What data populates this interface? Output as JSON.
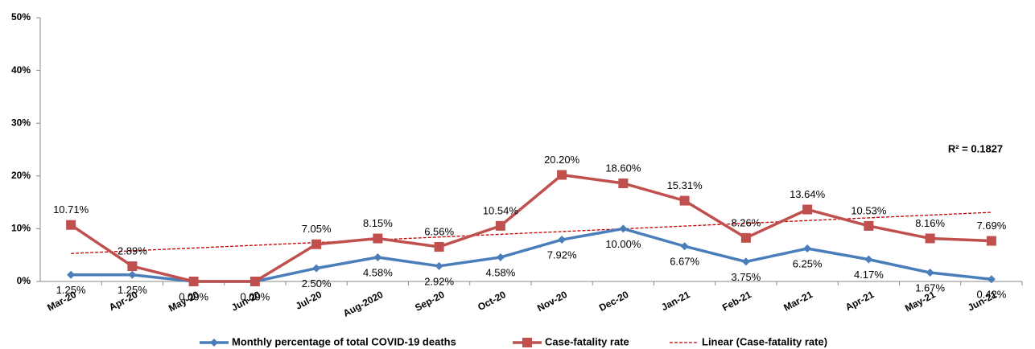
{
  "chart_data": {
    "type": "line",
    "categories": [
      "Mar-20",
      "Apr-20",
      "May-20",
      "Jun-20",
      "Jul-20",
      "Aug-2020",
      "Sep-20",
      "Oct-20",
      "Nov-20",
      "Dec-20",
      "Jan-21",
      "Feb-21",
      "Mar-21",
      "Apr-21",
      "May-21",
      "Jun-21"
    ],
    "series": [
      {
        "name": "Monthly percentage of total COVID-19 deaths",
        "color": "#4a7ebb",
        "marker": "diamond",
        "values": [
          1.25,
          1.25,
          0.0,
          0.0,
          2.5,
          4.58,
          2.92,
          4.58,
          7.92,
          10.0,
          6.67,
          3.75,
          6.25,
          4.17,
          1.67,
          0.42
        ],
        "value_labels": [
          "1.25%",
          "1.25%",
          "0.00%",
          "0.00%",
          "2.50%",
          "4.58%",
          "2.92%",
          "4.58%",
          "7.92%",
          "10.00%",
          "6.67%",
          "3.75%",
          "6.25%",
          "4.17%",
          "1.67%",
          "0.42%"
        ]
      },
      {
        "name": "Case-fatality rate",
        "color": "#c0504d",
        "marker": "square",
        "values": [
          10.71,
          2.89,
          0.0,
          0.0,
          7.05,
          8.15,
          6.56,
          10.54,
          20.2,
          18.6,
          15.31,
          8.26,
          13.64,
          10.53,
          8.16,
          7.69
        ],
        "value_labels": [
          "10.71%",
          "2.89%",
          null,
          null,
          "7.05%",
          "8.15%",
          "6.56%",
          "10.54%",
          "20.20%",
          "18.60%",
          "15.31%",
          "8.26%",
          "13.64%",
          "10.53%",
          "8.16%",
          "7.69%"
        ]
      }
    ],
    "trendline": {
      "name": "Linear (Case-fatality rate)",
      "color": "#c00000",
      "values": [
        5.3,
        13.1
      ],
      "annotation": "R² = 0.1827"
    },
    "ylim": [
      0,
      50
    ],
    "yticks": [
      {
        "value": 0,
        "label": "0%"
      },
      {
        "value": 10,
        "label": "10%"
      },
      {
        "value": 20,
        "label": "20%"
      },
      {
        "value": 30,
        "label": "30%"
      },
      {
        "value": 40,
        "label": "40%"
      },
      {
        "value": 50,
        "label": "50%"
      }
    ],
    "legend": "bottom"
  }
}
